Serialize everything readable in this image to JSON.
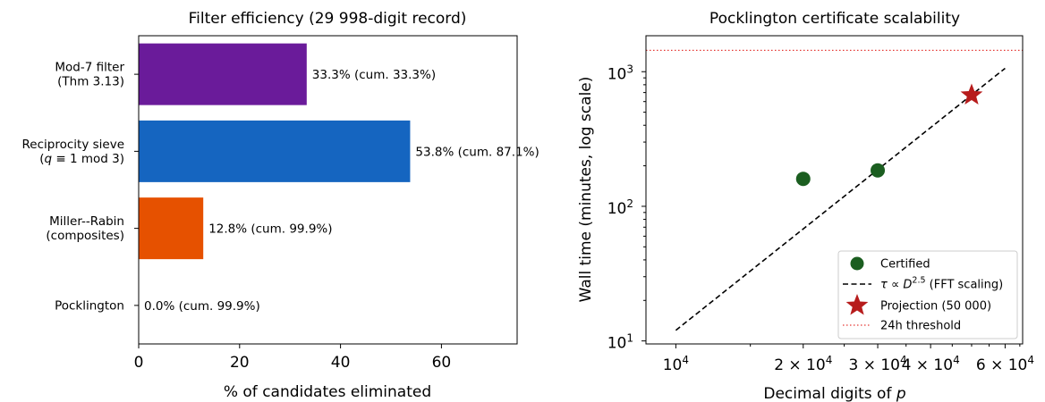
{
  "chart_data": [
    {
      "type": "bar",
      "orientation": "horizontal",
      "title": "Filter efficiency (29 998-digit record)",
      "xlabel": "% of candidates eliminated",
      "ylabel": "",
      "xlim": [
        0,
        75
      ],
      "xticks": [
        0,
        20,
        40,
        60
      ],
      "xtick_labels": [
        "0",
        "20",
        "40",
        "60"
      ],
      "grid": false,
      "categories": [
        {
          "line1": "Mod-7 filter",
          "line2": "(Thm 3.13)"
        },
        {
          "line1": "Reciprocity sieve",
          "line2": "(q ≡ 1 mod 3)"
        },
        {
          "line1": "Miller--Rabin",
          "line2": "(composites)"
        },
        {
          "line1": "Pocklington",
          "line2": ""
        }
      ],
      "values": [
        33.3,
        53.8,
        12.8,
        0.0
      ],
      "colors": [
        "#6a1b9a",
        "#1565c0",
        "#e65100",
        "#2e7d32"
      ],
      "data_labels": [
        "33.3% (cum. 33.3%)",
        "53.8% (cum. 87.1%)",
        "12.8% (cum. 99.9%)",
        "0.0% (cum. 99.9%)"
      ]
    },
    {
      "type": "scatter",
      "title": "Pocklington certificate scalability",
      "xlabel_text": "Decimal digits of ",
      "xlabel_var": "p",
      "ylabel": "Wall time (minutes, log scale)",
      "xscale": "log",
      "yscale": "log",
      "xlim": [
        8500,
        66000
      ],
      "ylim": [
        9.5,
        1850
      ],
      "grid": false,
      "legend_position": "lower-right",
      "xticks": [
        {
          "value": 10000,
          "base": "10",
          "exp": "4"
        },
        {
          "value": 20000,
          "base": "2 × 10",
          "exp": "4"
        },
        {
          "value": 30000,
          "base": "3 × 10",
          "exp": "4"
        },
        {
          "value": 40000,
          "base": "4 × 10",
          "exp": "4"
        },
        {
          "value": 60000,
          "base": "6 × 10",
          "exp": "4"
        }
      ],
      "yticks": [
        {
          "value": 10,
          "base": "10",
          "exp": "1"
        },
        {
          "value": 100,
          "base": "10",
          "exp": "2"
        },
        {
          "value": 1000,
          "base": "10",
          "exp": "3"
        }
      ],
      "series": [
        {
          "name": "Certified",
          "kind": "markers",
          "marker": "circle",
          "color": "#1b5e20",
          "points": [
            {
              "x": 20000,
              "y": 160
            },
            {
              "x": 29998,
              "y": 185
            }
          ]
        },
        {
          "name_main": "τ ∝ D",
          "name_sup": "2.5",
          "name_tail": " (FFT scaling)",
          "kind": "line",
          "style": "dashed",
          "color": "#000000",
          "points": [
            {
              "x": 10000,
              "y": 12
            },
            {
              "x": 60000,
              "y": 1060
            }
          ]
        },
        {
          "name": "Projection (50 000)",
          "kind": "markers",
          "marker": "star",
          "color": "#b71c1c",
          "points": [
            {
              "x": 50000,
              "y": 670
            }
          ]
        },
        {
          "name": "24h threshold",
          "kind": "hline",
          "style": "dotted",
          "color": "#e53935",
          "y": 1440
        }
      ]
    }
  ]
}
